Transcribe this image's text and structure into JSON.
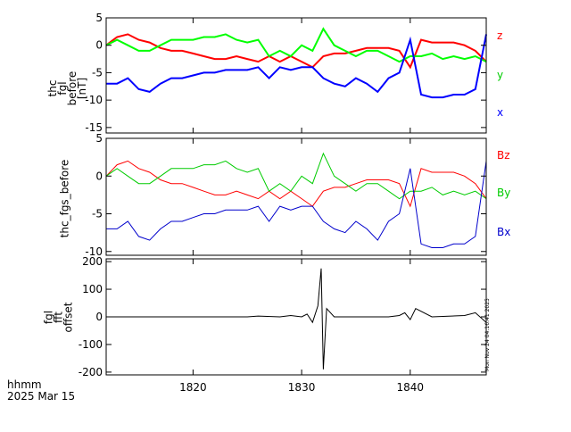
{
  "chart_data": [
    {
      "type": "line",
      "ylabel_lines": [
        "thc",
        "fgl",
        "before",
        "[nT]"
      ],
      "ylim": [
        -16,
        5
      ],
      "yticks": [
        5,
        0,
        -5,
        -10,
        -15
      ],
      "xlim": [
        1812,
        1847
      ],
      "series": [
        {
          "name": "z",
          "color": "#ff0000",
          "x": [
            1812,
            1813,
            1814,
            1815,
            1816,
            1817,
            1818,
            1819,
            1820,
            1821,
            1822,
            1823,
            1824,
            1825,
            1826,
            1827,
            1828,
            1829,
            1830,
            1831,
            1832,
            1833,
            1834,
            1835,
            1836,
            1837,
            1838,
            1839,
            1840,
            1841,
            1842,
            1843,
            1844,
            1845,
            1846,
            1847
          ],
          "y": [
            0,
            1.5,
            2,
            1,
            0.5,
            -0.5,
            -1,
            -1,
            -1.5,
            -2,
            -2.5,
            -2.5,
            -2,
            -2.5,
            -3,
            -2,
            -3,
            -2,
            -3,
            -4,
            -2,
            -1.5,
            -1.5,
            -1,
            -0.5,
            -0.5,
            -0.5,
            -1,
            -4,
            1,
            0.5,
            0.5,
            0.5,
            0,
            -1,
            -3
          ]
        },
        {
          "name": "y",
          "color": "#00ff00",
          "x": [
            1812,
            1813,
            1814,
            1815,
            1816,
            1817,
            1818,
            1819,
            1820,
            1821,
            1822,
            1823,
            1824,
            1825,
            1826,
            1827,
            1828,
            1829,
            1830,
            1831,
            1832,
            1833,
            1834,
            1835,
            1836,
            1837,
            1838,
            1839,
            1840,
            1841,
            1842,
            1843,
            1844,
            1845,
            1846,
            1847
          ],
          "y": [
            0,
            1,
            0,
            -1,
            -1,
            0,
            1,
            1,
            1,
            1.5,
            1.5,
            2,
            1,
            0.5,
            1,
            -2,
            -1,
            -2,
            0,
            -1,
            3,
            0,
            -1,
            -2,
            -1,
            -1,
            -2,
            -3,
            -2,
            -2,
            -1.5,
            -2.5,
            -2,
            -2.5,
            -2,
            -3
          ]
        },
        {
          "name": "x",
          "color": "#0000ff",
          "x": [
            1812,
            1813,
            1814,
            1815,
            1816,
            1817,
            1818,
            1819,
            1820,
            1821,
            1822,
            1823,
            1824,
            1825,
            1826,
            1827,
            1828,
            1829,
            1830,
            1831,
            1832,
            1833,
            1834,
            1835,
            1836,
            1837,
            1838,
            1839,
            1840,
            1841,
            1842,
            1843,
            1844,
            1845,
            1846,
            1847
          ],
          "y": [
            -7,
            -7,
            -6,
            -8,
            -8.5,
            -7,
            -6,
            -6,
            -5.5,
            -5,
            -5,
            -4.5,
            -4.5,
            -4.5,
            -4,
            -6,
            -4,
            -4.5,
            -4,
            -4,
            -6,
            -7,
            -7.5,
            -6,
            -7,
            -8.5,
            -6,
            -5,
            1,
            -9,
            -9.5,
            -9.5,
            -9,
            -9,
            -8,
            2
          ]
        }
      ]
    },
    {
      "type": "line",
      "ylabel": "thc_fgs_before",
      "ylim": [
        -10.5,
        5
      ],
      "yticks": [
        5,
        0,
        -5,
        -10
      ],
      "xlim": [
        1812,
        1847
      ],
      "series": [
        {
          "name": "Bz",
          "color": "#ff0000",
          "x": [
            1812,
            1813,
            1814,
            1815,
            1816,
            1817,
            1818,
            1819,
            1820,
            1821,
            1822,
            1823,
            1824,
            1825,
            1826,
            1827,
            1828,
            1829,
            1830,
            1831,
            1832,
            1833,
            1834,
            1835,
            1836,
            1837,
            1838,
            1839,
            1840,
            1841,
            1842,
            1843,
            1844,
            1845,
            1846,
            1847
          ],
          "y": [
            0,
            1.5,
            2,
            1,
            0.5,
            -0.5,
            -1,
            -1,
            -1.5,
            -2,
            -2.5,
            -2.5,
            -2,
            -2.5,
            -3,
            -2,
            -3,
            -2,
            -3,
            -4,
            -2,
            -1.5,
            -1.5,
            -1,
            -0.5,
            -0.5,
            -0.5,
            -1,
            -4,
            1,
            0.5,
            0.5,
            0.5,
            0,
            -1,
            -3
          ]
        },
        {
          "name": "By",
          "color": "#00cc00",
          "x": [
            1812,
            1813,
            1814,
            1815,
            1816,
            1817,
            1818,
            1819,
            1820,
            1821,
            1822,
            1823,
            1824,
            1825,
            1826,
            1827,
            1828,
            1829,
            1830,
            1831,
            1832,
            1833,
            1834,
            1835,
            1836,
            1837,
            1838,
            1839,
            1840,
            1841,
            1842,
            1843,
            1844,
            1845,
            1846,
            1847
          ],
          "y": [
            0,
            1,
            0,
            -1,
            -1,
            0,
            1,
            1,
            1,
            1.5,
            1.5,
            2,
            1,
            0.5,
            1,
            -2,
            -1,
            -2,
            0,
            -1,
            3,
            0,
            -1,
            -2,
            -1,
            -1,
            -2,
            -3,
            -2,
            -2,
            -1.5,
            -2.5,
            -2,
            -2.5,
            -2,
            -3
          ]
        },
        {
          "name": "Bx",
          "color": "#0000cc",
          "x": [
            1812,
            1813,
            1814,
            1815,
            1816,
            1817,
            1818,
            1819,
            1820,
            1821,
            1822,
            1823,
            1824,
            1825,
            1826,
            1827,
            1828,
            1829,
            1830,
            1831,
            1832,
            1833,
            1834,
            1835,
            1836,
            1837,
            1838,
            1839,
            1840,
            1841,
            1842,
            1843,
            1844,
            1845,
            1846,
            1847
          ],
          "y": [
            -7,
            -7,
            -6,
            -8,
            -8.5,
            -7,
            -6,
            -6,
            -5.5,
            -5,
            -5,
            -4.5,
            -4.5,
            -4.5,
            -4,
            -6,
            -4,
            -4.5,
            -4,
            -4,
            -6,
            -7,
            -7.5,
            -6,
            -7,
            -8.5,
            -6,
            -5,
            1,
            -9,
            -9.5,
            -9.5,
            -9,
            -9,
            -8,
            2
          ]
        }
      ]
    },
    {
      "type": "line",
      "ylabel_lines": [
        "fgl",
        "fft",
        "offset"
      ],
      "ylim": [
        -210,
        210
      ],
      "yticks": [
        200,
        100,
        0,
        -100,
        -200
      ],
      "xlim": [
        1812,
        1847
      ],
      "xticks": [
        1820,
        1830,
        1840
      ],
      "series": [
        {
          "color": "#000000",
          "x": [
            1812,
            1820,
            1825,
            1826,
            1828,
            1829,
            1830,
            1830.5,
            1831,
            1831.5,
            1831.8,
            1832,
            1832.3,
            1833,
            1835,
            1838,
            1839,
            1839.5,
            1840,
            1840.5,
            1842,
            1845,
            1846,
            1847
          ],
          "y": [
            0,
            0,
            0,
            3,
            0,
            5,
            0,
            10,
            -20,
            40,
            175,
            -190,
            30,
            0,
            0,
            0,
            5,
            15,
            -10,
            30,
            0,
            5,
            15,
            -20
          ]
        }
      ]
    }
  ],
  "x_axis_label": "hhmm",
  "date_label": "2025 Mar 15",
  "timestamp": "Mon Nov 24 04:16:41 2025",
  "colors": {
    "axis": "#000000",
    "background": "#ffffff"
  }
}
